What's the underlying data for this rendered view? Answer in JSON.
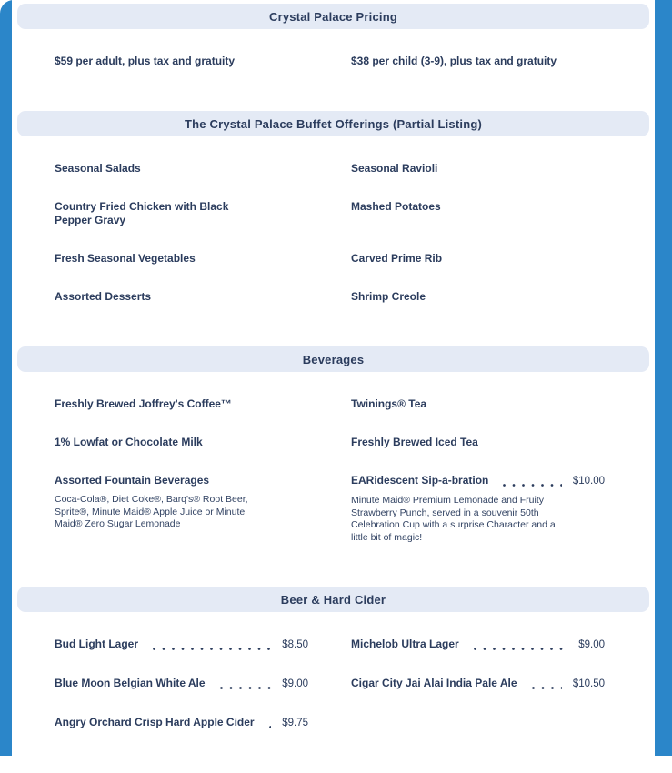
{
  "colors": {
    "background_blue": "#2b86c9",
    "section_header_bar": "#e4eaf5",
    "text_navy": "#2b3c5d"
  },
  "sections": [
    {
      "title": "Crystal Palace Pricing",
      "items": [
        {
          "name": "$59 per adult, plus tax and gratuity"
        },
        {
          "name": "$38 per child (3-9), plus tax and gratuity"
        }
      ]
    },
    {
      "title": "The Crystal Palace Buffet Offerings (Partial Listing)",
      "items": [
        {
          "name": "Seasonal Salads"
        },
        {
          "name": "Seasonal Ravioli"
        },
        {
          "name": "Country Fried Chicken with Black\nPepper Gravy"
        },
        {
          "name": "Mashed Potatoes"
        },
        {
          "name": "Fresh Seasonal Vegetables"
        },
        {
          "name": "Carved Prime Rib"
        },
        {
          "name": "Assorted Desserts"
        },
        {
          "name": "Shrimp Creole"
        }
      ]
    },
    {
      "title": "Beverages",
      "items": [
        {
          "name": "Freshly Brewed Joffrey's Coffee™"
        },
        {
          "name": "Twinings® Tea"
        },
        {
          "name": "1% Lowfat or Chocolate Milk"
        },
        {
          "name": "Freshly Brewed Iced Tea"
        },
        {
          "name": "Assorted Fountain Beverages",
          "description": "Coca-Cola®, Diet Coke®, Barq's® Root Beer,\nSprite®, Minute Maid® Apple Juice or Minute\nMaid® Zero Sugar Lemonade"
        },
        {
          "name": "EARidescent Sip-a-bration",
          "price": "$10.00",
          "description": "Minute Maid® Premium Lemonade and Fruity\nStrawberry Punch, served in a souvenir 50th\nCelebration Cup with a surprise Character and a\nlittle bit of magic!"
        }
      ]
    },
    {
      "title": "Beer & Hard Cider",
      "items": [
        {
          "name": "Bud Light Lager",
          "price": "$8.50"
        },
        {
          "name": "Michelob Ultra Lager",
          "price": "$9.00"
        },
        {
          "name": "Blue Moon Belgian White Ale",
          "price": "$9.00"
        },
        {
          "name": "Cigar City Jai Alai India Pale Ale",
          "price": "$10.50"
        },
        {
          "name": "Angry Orchard Crisp Hard Apple Cider",
          "price": "$9.75"
        }
      ]
    }
  ]
}
